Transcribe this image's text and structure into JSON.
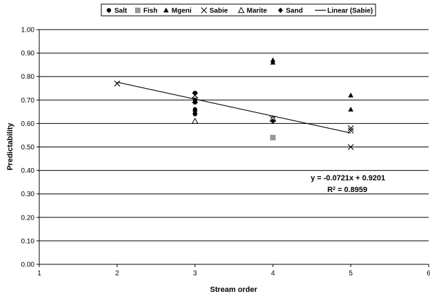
{
  "chart_data": {
    "type": "scatter",
    "xlabel": "Stream order",
    "ylabel": "Predictability",
    "xlim": [
      1,
      6
    ],
    "ylim": [
      0,
      1
    ],
    "x_ticks": [
      "1",
      "2",
      "3",
      "4",
      "5",
      "6"
    ],
    "y_ticks": [
      "0.00",
      "0.10",
      "0.20",
      "0.30",
      "0.40",
      "0.50",
      "0.60",
      "0.70",
      "0.80",
      "0.90",
      "1.00"
    ],
    "grid": "horizontal",
    "legend_position": "top",
    "series": [
      {
        "name": "Salt",
        "marker": "circle",
        "color": "#000000",
        "points": [
          [
            3,
            0.73
          ],
          [
            3,
            0.7
          ],
          [
            3,
            0.69
          ],
          [
            3,
            0.66
          ],
          [
            3,
            0.64
          ]
        ]
      },
      {
        "name": "Fish",
        "marker": "square",
        "color": "#999999",
        "points": [
          [
            4,
            0.54
          ]
        ]
      },
      {
        "name": "Mgeni",
        "marker": "triangle",
        "color": "#000000",
        "points": [
          [
            3,
            0.66
          ],
          [
            3,
            0.65
          ],
          [
            4,
            0.87
          ],
          [
            4,
            0.86
          ],
          [
            5,
            0.72
          ],
          [
            5,
            0.66
          ]
        ]
      },
      {
        "name": "Sabie",
        "marker": "x",
        "color": "#000000",
        "points": [
          [
            2,
            0.77
          ],
          [
            3,
            0.72
          ],
          [
            3,
            0.7
          ],
          [
            4,
            0.62
          ],
          [
            5,
            0.58
          ],
          [
            5,
            0.57
          ],
          [
            5,
            0.5
          ]
        ]
      },
      {
        "name": "Marite",
        "marker": "triangle-open",
        "color": "#000000",
        "points": [
          [
            3,
            0.61
          ],
          [
            4,
            0.62
          ]
        ]
      },
      {
        "name": "Sand",
        "marker": "diamond",
        "color": "#000000",
        "points": [
          [
            3,
            0.7
          ],
          [
            4,
            0.61
          ]
        ]
      }
    ],
    "trendline": {
      "name": "Linear (Sabie)",
      "slope": -0.0721,
      "intercept": 0.9201,
      "x_range": [
        2,
        5
      ],
      "equation_text": "y = -0.0721x + 0.9201",
      "r2_prefix": "R",
      "r2_sup": "2",
      "r2_value_text": " = 0.8959"
    }
  }
}
